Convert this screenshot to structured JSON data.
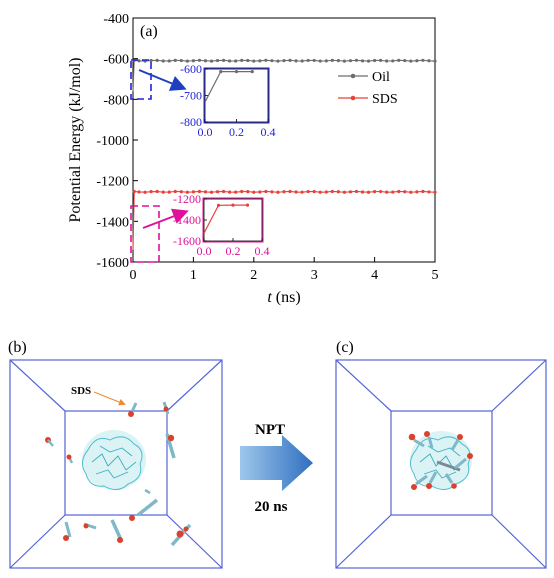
{
  "panels": {
    "a": "(a)",
    "b": "(b)",
    "c": "(c)"
  },
  "chart_data": [
    {
      "type": "line",
      "panel": "(a)",
      "xlabel_var": "t",
      "xlabel_unit": " (ns)",
      "ylabel": "Potential Energy (kJ/mol)",
      "xlim": [
        0,
        5
      ],
      "ylim": [
        -1600,
        -400
      ],
      "xticks": [
        0,
        1,
        2,
        3,
        4,
        5
      ],
      "yticks": [
        -1600,
        -1400,
        -1200,
        -1000,
        -800,
        -600,
        -400
      ],
      "legend_position": "right",
      "series": [
        {
          "name": "Oil",
          "color": "#6d6d6d",
          "plateau": -610,
          "start": -760,
          "x": [
            0,
            0.02,
            0.1,
            0.2,
            0.3,
            0.4,
            0.5,
            0.6,
            0.7,
            0.8,
            0.9,
            1.0,
            1.1,
            1.2,
            1.3,
            1.4,
            1.5,
            1.6,
            1.7,
            1.8,
            1.9,
            2.0,
            2.1,
            2.2,
            2.3,
            2.4,
            2.5,
            2.6,
            2.7,
            2.8,
            2.9,
            3.0,
            3.1,
            3.2,
            3.3,
            3.4,
            3.5,
            3.6,
            3.7,
            3.8,
            3.9,
            4.0,
            4.1,
            4.2,
            4.3,
            4.4,
            4.5,
            4.6,
            4.7,
            4.8,
            4.9,
            5.0
          ]
        },
        {
          "name": "SDS",
          "color": "#e8403a",
          "plateau": -1255,
          "start": -1540,
          "x": [
            0,
            0.02,
            0.1,
            0.2,
            0.3,
            0.4,
            0.5,
            0.6,
            0.7,
            0.8,
            0.9,
            1.0,
            1.1,
            1.2,
            1.3,
            1.4,
            1.5,
            1.6,
            1.7,
            1.8,
            1.9,
            2.0,
            2.1,
            2.2,
            2.3,
            2.4,
            2.5,
            2.6,
            2.7,
            2.8,
            2.9,
            3.0,
            3.1,
            3.2,
            3.3,
            3.4,
            3.5,
            3.6,
            3.7,
            3.8,
            3.9,
            4.0,
            4.1,
            4.2,
            4.3,
            4.4,
            4.5,
            4.6,
            4.7,
            4.8,
            4.9,
            5.0
          ]
        }
      ]
    },
    {
      "type": "line",
      "panel": "inset-oil",
      "frame_color": "#2222dd",
      "xlim": [
        0,
        0.4
      ],
      "ylim": [
        -800,
        -600
      ],
      "xticks": [
        "0.0",
        "0.2",
        "0.4"
      ],
      "yticks": [
        "-600",
        "-700",
        "-800"
      ],
      "series": [
        {
          "name": "Oil",
          "color": "#6d6d6d",
          "x": [
            0.0,
            0.1,
            0.2,
            0.3
          ],
          "y": [
            -725,
            -610,
            -610,
            -610
          ]
        }
      ]
    },
    {
      "type": "line",
      "panel": "inset-sds",
      "frame_color": "#e0109a",
      "xlim": [
        0,
        0.4
      ],
      "ylim": [
        -1600,
        -1200
      ],
      "xticks": [
        "0.0",
        "0.2",
        "0.4"
      ],
      "yticks": [
        "-1200",
        "-1400",
        "-1600"
      ],
      "series": [
        {
          "name": "SDS",
          "color": "#e8403a",
          "x": [
            0.0,
            0.1,
            0.2,
            0.3
          ],
          "y": [
            -1525,
            -1260,
            -1258,
            -1258
          ]
        }
      ]
    }
  ],
  "simulation": {
    "label_sds": "SDS",
    "arrow_top": "NPT",
    "arrow_bottom": "20 ns"
  }
}
